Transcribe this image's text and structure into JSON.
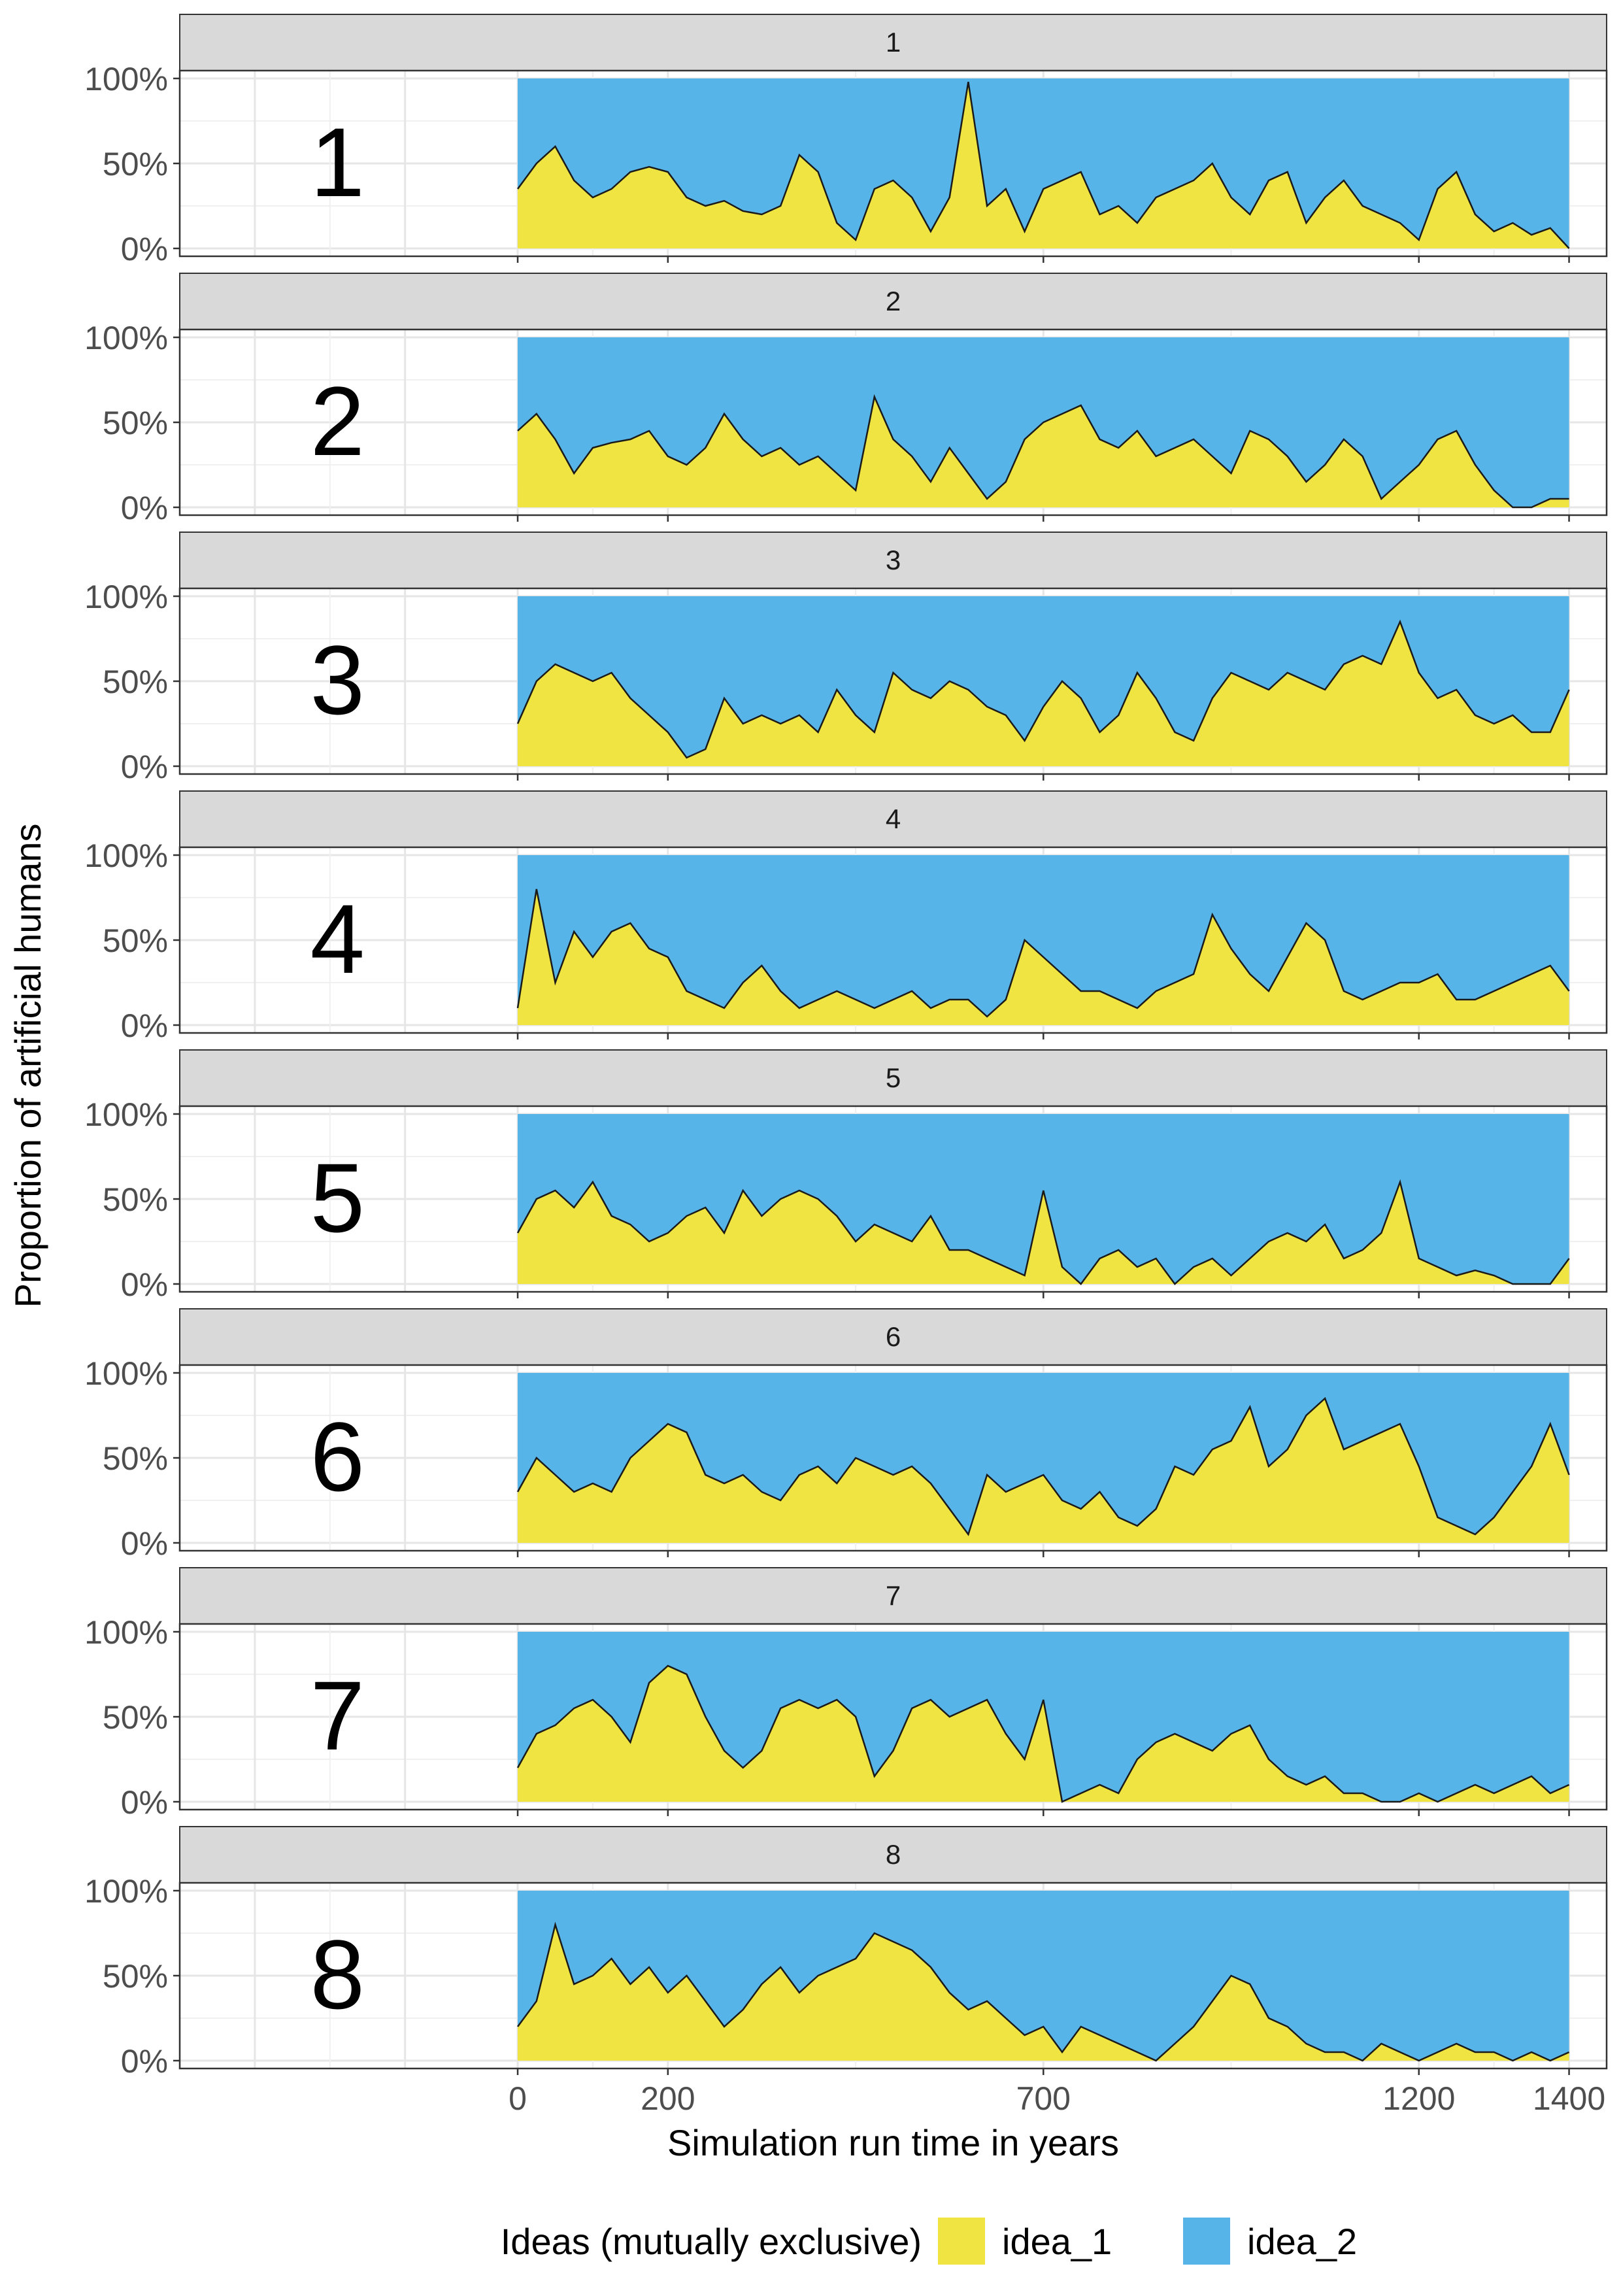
{
  "chart_data": {
    "type": "area",
    "stacked": true,
    "normalized": true,
    "xlabel": "Simulation run time in years",
    "ylabel": "Proportion of artificial humans",
    "xlim": [
      -450,
      1450
    ],
    "ylim": [
      0,
      100
    ],
    "x_ticks": [
      0,
      200,
      700,
      1200,
      1400
    ],
    "y_ticks": [
      "0%",
      "50%",
      "100%"
    ],
    "grid": "on",
    "legend": {
      "title": "Ideas (mutually exclusive)",
      "position": "bottom",
      "entries": [
        {
          "label": "idea_1",
          "color": "#F0E442"
        },
        {
          "label": "idea_2",
          "color": "#56B4E9"
        }
      ]
    },
    "series_colors": {
      "idea_1": "#F0E442",
      "idea_2": "#56B4E9"
    },
    "value_reported": "idea_1 share in percent; idea_2 = 100 - idea_1",
    "panels": [
      {
        "strip": "1",
        "label": "1",
        "x": [
          0,
          25,
          50,
          75,
          100,
          125,
          150,
          175,
          200,
          225,
          250,
          275,
          300,
          325,
          350,
          375,
          400,
          425,
          450,
          475,
          500,
          525,
          550,
          575,
          600,
          625,
          650,
          675,
          700,
          725,
          750,
          775,
          800,
          825,
          850,
          875,
          900,
          925,
          950,
          975,
          1000,
          1025,
          1050,
          1075,
          1100,
          1125,
          1150,
          1175,
          1200,
          1225,
          1250,
          1275,
          1300,
          1325,
          1350,
          1375,
          1400
        ],
        "idea_1": [
          35,
          50,
          60,
          40,
          30,
          35,
          45,
          48,
          45,
          30,
          25,
          28,
          22,
          20,
          25,
          55,
          45,
          15,
          5,
          35,
          40,
          30,
          10,
          30,
          98,
          25,
          35,
          10,
          35,
          40,
          45,
          20,
          25,
          15,
          30,
          35,
          40,
          50,
          30,
          20,
          40,
          45,
          15,
          30,
          40,
          25,
          20,
          15,
          5,
          35,
          45,
          20,
          10,
          15,
          8,
          12,
          0
        ]
      },
      {
        "strip": "2",
        "label": "2",
        "x": [
          0,
          25,
          50,
          75,
          100,
          125,
          150,
          175,
          200,
          225,
          250,
          275,
          300,
          325,
          350,
          375,
          400,
          425,
          450,
          475,
          500,
          525,
          550,
          575,
          600,
          625,
          650,
          675,
          700,
          725,
          750,
          775,
          800,
          825,
          850,
          875,
          900,
          925,
          950,
          975,
          1000,
          1025,
          1050,
          1075,
          1100,
          1125,
          1150,
          1175,
          1200,
          1225,
          1250,
          1275,
          1300,
          1325,
          1350,
          1375,
          1400
        ],
        "idea_1": [
          45,
          55,
          40,
          20,
          35,
          38,
          40,
          45,
          30,
          25,
          35,
          55,
          40,
          30,
          35,
          25,
          30,
          20,
          10,
          65,
          40,
          30,
          15,
          35,
          20,
          5,
          15,
          40,
          50,
          55,
          60,
          40,
          35,
          45,
          30,
          35,
          40,
          30,
          20,
          45,
          40,
          30,
          15,
          25,
          40,
          30,
          5,
          15,
          25,
          40,
          45,
          25,
          10,
          0,
          0,
          5,
          5
        ]
      },
      {
        "strip": "3",
        "label": "3",
        "x": [
          0,
          25,
          50,
          75,
          100,
          125,
          150,
          175,
          200,
          225,
          250,
          275,
          300,
          325,
          350,
          375,
          400,
          425,
          450,
          475,
          500,
          525,
          550,
          575,
          600,
          625,
          650,
          675,
          700,
          725,
          750,
          775,
          800,
          825,
          850,
          875,
          900,
          925,
          950,
          975,
          1000,
          1025,
          1050,
          1075,
          1100,
          1125,
          1150,
          1175,
          1200,
          1225,
          1250,
          1275,
          1300,
          1325,
          1350,
          1375,
          1400
        ],
        "idea_1": [
          25,
          50,
          60,
          55,
          50,
          55,
          40,
          30,
          20,
          5,
          10,
          40,
          25,
          30,
          25,
          30,
          20,
          45,
          30,
          20,
          55,
          45,
          40,
          50,
          45,
          35,
          30,
          15,
          35,
          50,
          40,
          20,
          30,
          55,
          40,
          20,
          15,
          40,
          55,
          50,
          45,
          55,
          50,
          45,
          60,
          65,
          60,
          85,
          55,
          40,
          45,
          30,
          25,
          30,
          20,
          20,
          45
        ]
      },
      {
        "strip": "4",
        "label": "4",
        "x": [
          0,
          25,
          50,
          75,
          100,
          125,
          150,
          175,
          200,
          225,
          250,
          275,
          300,
          325,
          350,
          375,
          400,
          425,
          450,
          475,
          500,
          525,
          550,
          575,
          600,
          625,
          650,
          675,
          700,
          725,
          750,
          775,
          800,
          825,
          850,
          875,
          900,
          925,
          950,
          975,
          1000,
          1025,
          1050,
          1075,
          1100,
          1125,
          1150,
          1175,
          1200,
          1225,
          1250,
          1275,
          1300,
          1325,
          1350,
          1375,
          1400
        ],
        "idea_1": [
          10,
          80,
          25,
          55,
          40,
          55,
          60,
          45,
          40,
          20,
          15,
          10,
          25,
          35,
          20,
          10,
          15,
          20,
          15,
          10,
          15,
          20,
          10,
          15,
          15,
          5,
          15,
          50,
          40,
          30,
          20,
          20,
          15,
          10,
          20,
          25,
          30,
          65,
          45,
          30,
          20,
          40,
          60,
          50,
          20,
          15,
          20,
          25,
          25,
          30,
          15,
          15,
          20,
          25,
          30,
          35,
          20
        ]
      },
      {
        "strip": "5",
        "label": "5",
        "x": [
          0,
          25,
          50,
          75,
          100,
          125,
          150,
          175,
          200,
          225,
          250,
          275,
          300,
          325,
          350,
          375,
          400,
          425,
          450,
          475,
          500,
          525,
          550,
          575,
          600,
          625,
          650,
          675,
          700,
          725,
          750,
          775,
          800,
          825,
          850,
          875,
          900,
          925,
          950,
          975,
          1000,
          1025,
          1050,
          1075,
          1100,
          1125,
          1150,
          1175,
          1200,
          1225,
          1250,
          1275,
          1300,
          1325,
          1350,
          1375,
          1400
        ],
        "idea_1": [
          30,
          50,
          55,
          45,
          60,
          40,
          35,
          25,
          30,
          40,
          45,
          30,
          55,
          40,
          50,
          55,
          50,
          40,
          25,
          35,
          30,
          25,
          40,
          20,
          20,
          15,
          10,
          5,
          55,
          10,
          0,
          15,
          20,
          10,
          15,
          0,
          10,
          15,
          5,
          15,
          25,
          30,
          25,
          35,
          15,
          20,
          30,
          60,
          15,
          10,
          5,
          8,
          5,
          0,
          0,
          0,
          15
        ]
      },
      {
        "strip": "6",
        "label": "6",
        "x": [
          0,
          25,
          50,
          75,
          100,
          125,
          150,
          175,
          200,
          225,
          250,
          275,
          300,
          325,
          350,
          375,
          400,
          425,
          450,
          475,
          500,
          525,
          550,
          575,
          600,
          625,
          650,
          675,
          700,
          725,
          750,
          775,
          800,
          825,
          850,
          875,
          900,
          925,
          950,
          975,
          1000,
          1025,
          1050,
          1075,
          1100,
          1125,
          1150,
          1175,
          1200,
          1225,
          1250,
          1275,
          1300,
          1325,
          1350,
          1375,
          1400
        ],
        "idea_1": [
          30,
          50,
          40,
          30,
          35,
          30,
          50,
          60,
          70,
          65,
          40,
          35,
          40,
          30,
          25,
          40,
          45,
          35,
          50,
          45,
          40,
          45,
          35,
          20,
          5,
          40,
          30,
          35,
          40,
          25,
          20,
          30,
          15,
          10,
          20,
          45,
          40,
          55,
          60,
          80,
          45,
          55,
          75,
          85,
          55,
          60,
          65,
          70,
          45,
          15,
          10,
          5,
          15,
          30,
          45,
          70,
          40
        ]
      },
      {
        "strip": "7",
        "label": "7",
        "x": [
          0,
          25,
          50,
          75,
          100,
          125,
          150,
          175,
          200,
          225,
          250,
          275,
          300,
          325,
          350,
          375,
          400,
          425,
          450,
          475,
          500,
          525,
          550,
          575,
          600,
          625,
          650,
          675,
          700,
          725,
          750,
          775,
          800,
          825,
          850,
          875,
          900,
          925,
          950,
          975,
          1000,
          1025,
          1050,
          1075,
          1100,
          1125,
          1150,
          1175,
          1200,
          1225,
          1250,
          1275,
          1300,
          1325,
          1350,
          1375,
          1400
        ],
        "idea_1": [
          20,
          40,
          45,
          55,
          60,
          50,
          35,
          70,
          80,
          75,
          50,
          30,
          20,
          30,
          55,
          60,
          55,
          60,
          50,
          15,
          30,
          55,
          60,
          50,
          55,
          60,
          40,
          25,
          60,
          0,
          5,
          10,
          5,
          25,
          35,
          40,
          35,
          30,
          40,
          45,
          25,
          15,
          10,
          15,
          5,
          5,
          0,
          0,
          5,
          0,
          5,
          10,
          5,
          10,
          15,
          5,
          10
        ]
      },
      {
        "strip": "8",
        "label": "8",
        "x": [
          0,
          25,
          50,
          75,
          100,
          125,
          150,
          175,
          200,
          225,
          250,
          275,
          300,
          325,
          350,
          375,
          400,
          425,
          450,
          475,
          500,
          525,
          550,
          575,
          600,
          625,
          650,
          675,
          700,
          725,
          750,
          775,
          800,
          825,
          850,
          875,
          900,
          925,
          950,
          975,
          1000,
          1025,
          1050,
          1075,
          1100,
          1125,
          1150,
          1175,
          1200,
          1225,
          1250,
          1275,
          1300,
          1325,
          1350,
          1375,
          1400
        ],
        "idea_1": [
          20,
          35,
          80,
          45,
          50,
          60,
          45,
          55,
          40,
          50,
          35,
          20,
          30,
          45,
          55,
          40,
          50,
          55,
          60,
          75,
          70,
          65,
          55,
          40,
          30,
          35,
          25,
          15,
          20,
          5,
          20,
          15,
          10,
          5,
          0,
          10,
          20,
          35,
          50,
          45,
          25,
          20,
          10,
          5,
          5,
          0,
          10,
          5,
          0,
          5,
          10,
          5,
          5,
          0,
          5,
          0,
          5
        ]
      }
    ]
  }
}
